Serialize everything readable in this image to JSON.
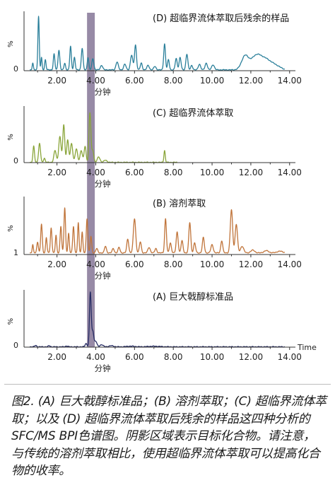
{
  "xaxis_label": "分钟",
  "time_label": "Time",
  "caption": "图2. (A) 巨大戟醇标准品；(B) 溶剂萃取；(C) 超临界流体萃取；以及 (D) 超临界流体萃取后残余的样品这四种分析的SFC/MS BPI色谱图。阴影区域表示目标化合物。请注意，与传统的溶剂萃取相比，使用超临界流体萃取可以提高化合物的收率。",
  "colors": {
    "D": "#2a7f9a",
    "C": "#8aa53a",
    "B": "#c0743a",
    "A": "#252b63",
    "shade": "#8c7d9c"
  },
  "chart_data": [
    {
      "type": "line",
      "title": "(D) 超临界流体萃取后残余的样品",
      "ylabel": "%",
      "ybase_label": "0",
      "xlim": [
        0.3,
        14.3
      ],
      "xticks": [
        "2.00",
        "4.00",
        "6.00",
        "8.00",
        "10.00",
        "12.00",
        "14.00"
      ],
      "xlabel": "分钟",
      "shaded_region": [
        3.55,
        3.95
      ],
      "baseline": 1.5,
      "peaks": [
        [
          0.75,
          12,
          0.03
        ],
        [
          1.05,
          95,
          0.035
        ],
        [
          1.2,
          22,
          0.03
        ],
        [
          1.4,
          18,
          0.035
        ],
        [
          1.85,
          28,
          0.04
        ],
        [
          2.1,
          35,
          0.045
        ],
        [
          2.4,
          12,
          0.04
        ],
        [
          2.7,
          42,
          0.04
        ],
        [
          2.9,
          22,
          0.04
        ],
        [
          3.3,
          38,
          0.045
        ],
        [
          3.6,
          22,
          0.04
        ],
        [
          3.85,
          20,
          0.05
        ],
        [
          4.3,
          8,
          0.06
        ],
        [
          5.1,
          14,
          0.06
        ],
        [
          5.5,
          10,
          0.06
        ],
        [
          5.85,
          26,
          0.06
        ],
        [
          6.05,
          44,
          0.05
        ],
        [
          6.35,
          12,
          0.05
        ],
        [
          6.7,
          8,
          0.06
        ],
        [
          7.05,
          6,
          0.06
        ],
        [
          7.55,
          46,
          0.045
        ],
        [
          7.75,
          18,
          0.045
        ],
        [
          8.15,
          20,
          0.05
        ],
        [
          8.35,
          22,
          0.05
        ],
        [
          8.7,
          28,
          0.05
        ],
        [
          8.95,
          8,
          0.05
        ],
        [
          9.35,
          10,
          0.06
        ],
        [
          9.7,
          12,
          0.06
        ],
        [
          10.05,
          9,
          0.07
        ],
        [
          11.7,
          24,
          0.18
        ],
        [
          12.25,
          22,
          0.25
        ],
        [
          12.75,
          18,
          0.3
        ],
        [
          13.3,
          6,
          0.25
        ]
      ]
    },
    {
      "type": "line",
      "title": "(C) 超临界流体萃取",
      "ylabel": "%",
      "ybase_label": "0",
      "xlim": [
        0.3,
        14.3
      ],
      "xticks": [
        "2.00",
        "4.00",
        "6.00",
        "8.00",
        "10.00",
        "12.00",
        "14.00"
      ],
      "xlabel": "分钟",
      "shaded_region": [
        3.55,
        3.95
      ],
      "baseline": 0.5,
      "end": 8.2,
      "peaks": [
        [
          0.8,
          30,
          0.04
        ],
        [
          1.1,
          35,
          0.05
        ],
        [
          1.35,
          8,
          0.04
        ],
        [
          1.9,
          22,
          0.06
        ],
        [
          2.15,
          48,
          0.06
        ],
        [
          2.35,
          70,
          0.05
        ],
        [
          2.55,
          42,
          0.05
        ],
        [
          2.75,
          35,
          0.06
        ],
        [
          3.0,
          25,
          0.06
        ],
        [
          3.25,
          22,
          0.06
        ],
        [
          3.45,
          30,
          0.05
        ],
        [
          3.7,
          92,
          0.05
        ],
        [
          3.85,
          22,
          0.05
        ],
        [
          4.15,
          10,
          0.07
        ],
        [
          4.5,
          4,
          0.08
        ],
        [
          7.55,
          22,
          0.035
        ]
      ]
    },
    {
      "type": "line",
      "title": "(B) 溶剂萃取",
      "ylabel": "%",
      "ybase_label": "1",
      "xlim": [
        0.3,
        14.3
      ],
      "xticks": [
        "2.00",
        "4.00",
        "6.00",
        "8.00",
        "10.00",
        "12.00",
        "14.00"
      ],
      "xlabel": "分钟",
      "shaded_region": [
        3.55,
        3.95
      ],
      "baseline": 3,
      "peaks": [
        [
          0.75,
          15,
          0.03
        ],
        [
          1.0,
          20,
          0.04
        ],
        [
          1.2,
          52,
          0.04
        ],
        [
          1.45,
          28,
          0.035
        ],
        [
          1.7,
          45,
          0.04
        ],
        [
          1.95,
          32,
          0.035
        ],
        [
          2.2,
          48,
          0.04
        ],
        [
          2.4,
          82,
          0.04
        ],
        [
          2.6,
          35,
          0.035
        ],
        [
          2.85,
          48,
          0.04
        ],
        [
          3.1,
          55,
          0.035
        ],
        [
          3.3,
          38,
          0.035
        ],
        [
          3.55,
          62,
          0.04
        ],
        [
          3.75,
          30,
          0.04
        ],
        [
          4.05,
          8,
          0.05
        ],
        [
          4.5,
          12,
          0.05
        ],
        [
          4.9,
          8,
          0.05
        ],
        [
          5.2,
          10,
          0.05
        ],
        [
          5.65,
          25,
          0.05
        ],
        [
          6.0,
          62,
          0.06
        ],
        [
          6.3,
          20,
          0.05
        ],
        [
          6.75,
          10,
          0.06
        ],
        [
          7.1,
          8,
          0.05
        ],
        [
          7.6,
          62,
          0.045
        ],
        [
          7.85,
          18,
          0.05
        ],
        [
          8.2,
          38,
          0.05
        ],
        [
          8.45,
          22,
          0.05
        ],
        [
          8.85,
          55,
          0.05
        ],
        [
          9.1,
          18,
          0.05
        ],
        [
          9.55,
          28,
          0.05
        ],
        [
          10.0,
          15,
          0.06
        ],
        [
          10.5,
          22,
          0.05
        ],
        [
          11.0,
          78,
          0.06
        ],
        [
          11.25,
          52,
          0.06
        ],
        [
          11.55,
          12,
          0.08
        ],
        [
          12.1,
          5,
          0.1
        ],
        [
          12.8,
          4,
          0.12
        ],
        [
          13.5,
          3,
          0.15
        ]
      ]
    },
    {
      "type": "line",
      "title": "(A) 巨大戟醇标准品",
      "ylabel": "%",
      "ybase_label": "0",
      "xlim": [
        0.3,
        14.3
      ],
      "xticks": [
        "2.00",
        "4.00",
        "6.00",
        "8.00",
        "10.00",
        "12.00",
        "14.00"
      ],
      "xlabel": "分钟",
      "shaded_region": [
        3.55,
        3.95
      ],
      "baseline": 0.6,
      "peaks": [
        [
          0.9,
          2.5,
          0.05
        ],
        [
          1.6,
          2,
          0.05
        ],
        [
          2.5,
          1.5,
          0.06
        ],
        [
          3.5,
          6,
          0.05
        ],
        [
          3.72,
          100,
          0.045
        ],
        [
          3.85,
          28,
          0.05
        ],
        [
          4.0,
          10,
          0.06
        ],
        [
          4.3,
          4,
          0.08
        ],
        [
          4.8,
          2,
          0.12
        ],
        [
          5.8,
          1.2,
          0.2
        ],
        [
          7.0,
          1,
          0.3
        ]
      ]
    }
  ]
}
